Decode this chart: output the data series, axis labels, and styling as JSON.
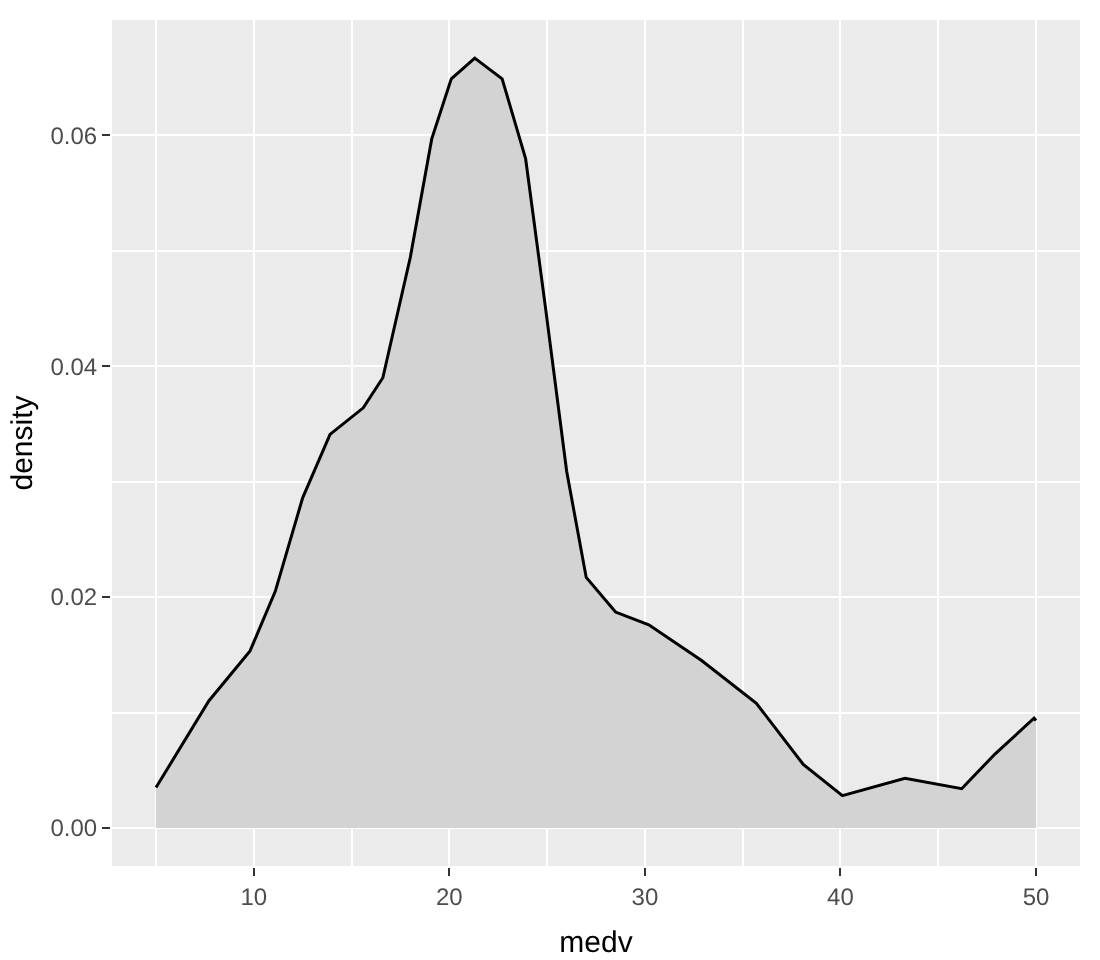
{
  "chart_data": {
    "type": "area",
    "xlabel": "medv",
    "ylabel": "density",
    "x": [
      5,
      7.7,
      9.8,
      11.1,
      12.5,
      13.9,
      15.6,
      16.6,
      18.0,
      19.1,
      20.1,
      21.3,
      22.7,
      23.9,
      24.9,
      26.0,
      27.0,
      28.5,
      30.2,
      32.9,
      35.7,
      38.1,
      40.1,
      43.3,
      46.2,
      47.9,
      49.9,
      50
    ],
    "series": [
      {
        "color": "#d3d3d3",
        "values": [
          0.0035,
          0.011,
          0.0153,
          0.0205,
          0.0286,
          0.0341,
          0.0364,
          0.039,
          0.0494,
          0.0597,
          0.0649,
          0.0667,
          0.0649,
          0.058,
          0.0453,
          0.0309,
          0.0217,
          0.0187,
          0.0176,
          0.0145,
          0.0108,
          0.0055,
          0.0028,
          0.0043,
          0.0034,
          0.0064,
          0.0095,
          0.0093
        ]
      }
    ],
    "xlim": [
      2.75,
      52.25
    ],
    "ylim": [
      -0.0033,
      0.07
    ],
    "xticks": [
      10,
      20,
      30,
      40,
      50
    ],
    "yticks": [
      {
        "value": 0,
        "label": "0.00"
      },
      {
        "value": 0.02,
        "label": "0.02"
      },
      {
        "value": 0.04,
        "label": "0.04"
      },
      {
        "value": 0.06,
        "label": "0.06"
      }
    ],
    "grid": true
  }
}
